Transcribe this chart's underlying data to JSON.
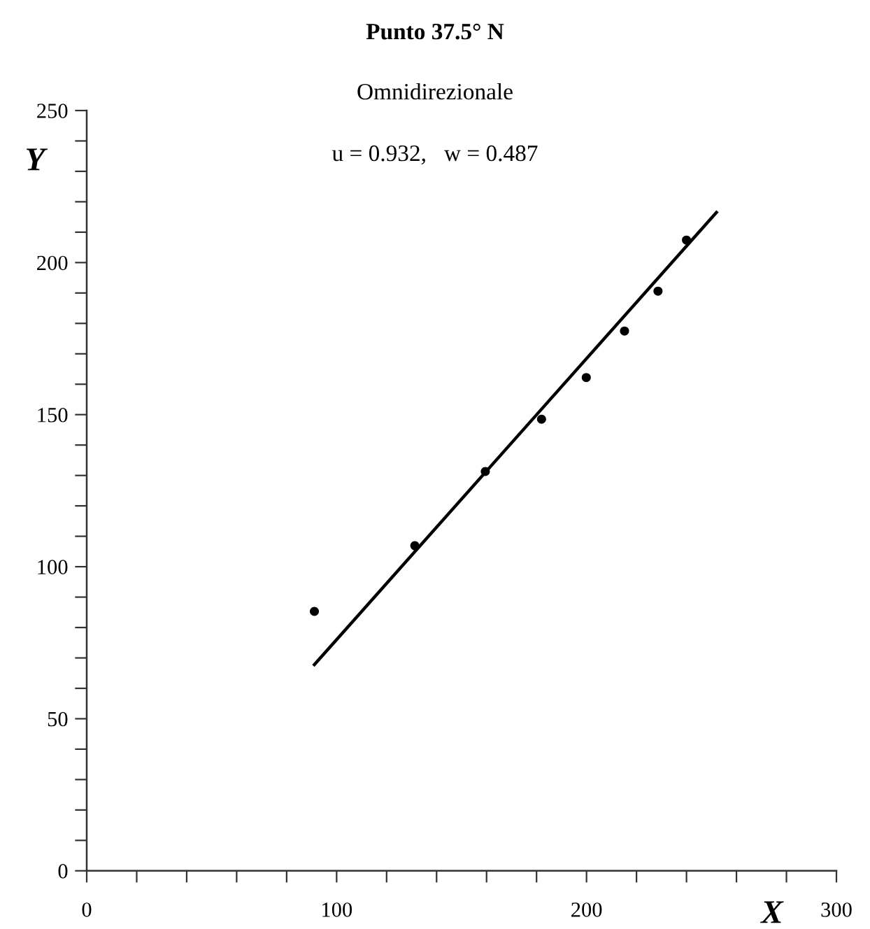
{
  "chart_data": {
    "type": "scatter",
    "title": "Punto 37.5° N",
    "subtitle": "Omnidirezionale",
    "xlabel": "X",
    "ylabel": "Y",
    "annotations": [
      "u = 0.932,   w = 0.487"
    ],
    "series": [
      {
        "color": "#000000",
        "marker": "circle",
        "x": [
          91.1,
          131.3,
          159.5,
          182.0,
          199.9,
          215.2,
          228.6,
          240.0
        ],
        "values": [
          85.3,
          106.9,
          131.3,
          148.5,
          162.2,
          177.5,
          190.6,
          207.4
        ]
      },
      {
        "type": "line",
        "color": "#000000",
        "line_style": "solid",
        "x": [
          91.1,
          252
        ],
        "values": [
          67.8,
          216.5
        ]
      }
    ],
    "xlim": [
      0,
      300
    ],
    "ylim": [
      0,
      250
    ],
    "xticks": [
      0,
      {
        "value": 20,
        "label": null
      },
      {
        "value": 40,
        "label": null
      },
      {
        "value": 60,
        "label": null
      },
      {
        "value": 80,
        "label": null
      },
      100,
      {
        "value": 120,
        "label": null
      },
      {
        "value": 140,
        "label": null
      },
      {
        "value": 160,
        "label": null
      },
      {
        "value": 180,
        "label": null
      },
      200,
      {
        "value": 220,
        "label": null
      },
      {
        "value": 240,
        "label": null
      },
      {
        "value": 260,
        "label": null
      },
      {
        "value": 280,
        "label": null
      },
      300
    ],
    "yticks": [
      0,
      {
        "value": 10,
        "label": null
      },
      {
        "value": 20,
        "label": null
      },
      {
        "value": 30,
        "label": null
      },
      {
        "value": 40,
        "label": null
      },
      50,
      {
        "value": 60,
        "label": null
      },
      {
        "value": 70,
        "label": null
      },
      {
        "value": 80,
        "label": null
      },
      {
        "value": 90,
        "label": null
      },
      100,
      {
        "value": 110,
        "label": null
      },
      {
        "value": 120,
        "label": null
      },
      {
        "value": 130,
        "label": null
      },
      {
        "value": 140,
        "label": null
      },
      150,
      {
        "value": 160,
        "label": null
      },
      {
        "value": 170,
        "label": null
      },
      {
        "value": 180,
        "label": null
      },
      {
        "value": 190,
        "label": null
      },
      200,
      {
        "value": 210,
        "label": null
      },
      {
        "value": 220,
        "label": null
      },
      {
        "value": 230,
        "label": null
      },
      {
        "value": 240,
        "label": null
      },
      250
    ],
    "grid": false,
    "legend": false
  }
}
